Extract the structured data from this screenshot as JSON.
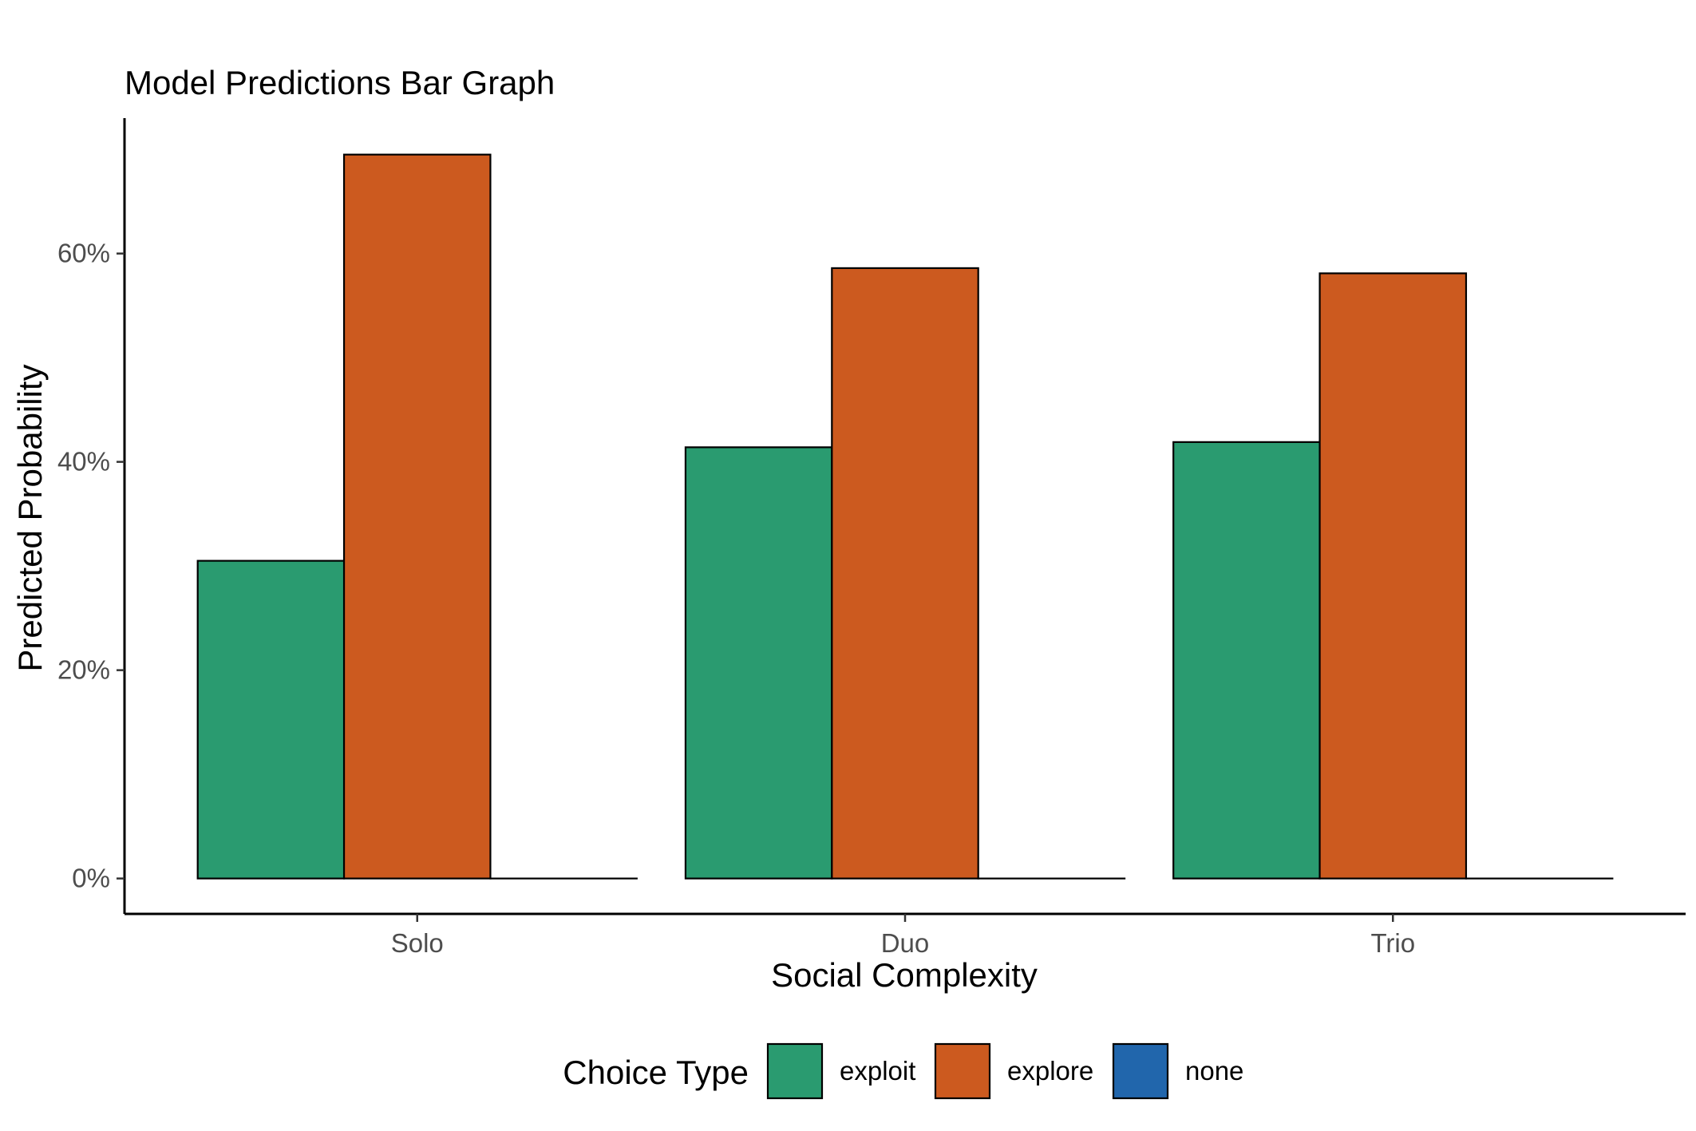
{
  "chart_data": {
    "type": "bar",
    "title": "Model Predictions Bar Graph",
    "xlabel": "Social Complexity",
    "ylabel": "Predicted Probability",
    "categories": [
      "Solo",
      "Duo",
      "Trio"
    ],
    "series": [
      {
        "name": "exploit",
        "color": "#2a9b70",
        "values": [
          0.305,
          0.414,
          0.419
        ]
      },
      {
        "name": "explore",
        "color": "#cc5a1f",
        "values": [
          0.695,
          0.586,
          0.581
        ]
      },
      {
        "name": "none",
        "color": "#2166ac",
        "values": [
          0.0,
          0.0,
          0.0
        ]
      }
    ],
    "ylim": [
      -0.034,
      0.73
    ],
    "yticks": [
      0,
      0.2,
      0.4,
      0.6
    ],
    "ytick_labels": [
      "0%",
      "20%",
      "40%",
      "60%"
    ],
    "legend": {
      "title": "Choice Type",
      "position": "bottom"
    },
    "grid": false
  }
}
